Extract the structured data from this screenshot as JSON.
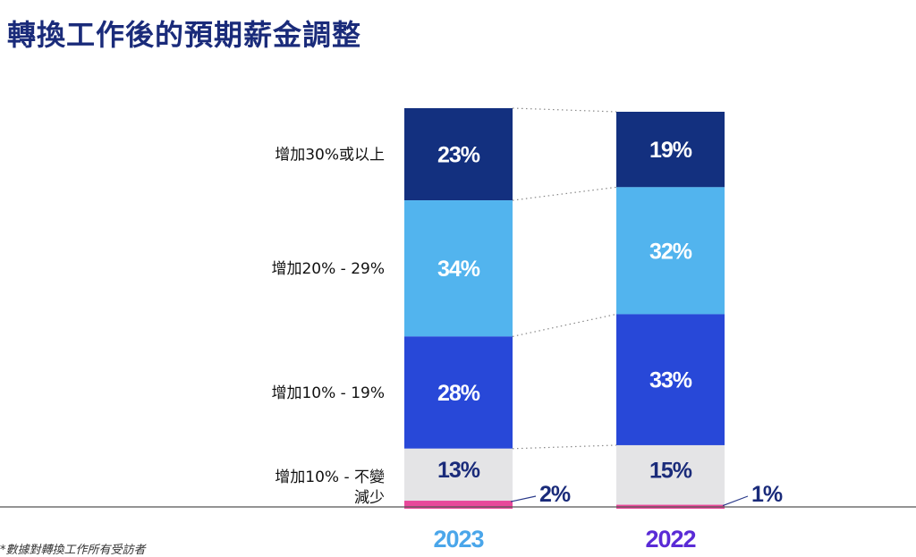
{
  "chart_data": {
    "type": "bar",
    "stacked": true,
    "normalized": true,
    "title": "轉換工作後的預期薪金調整",
    "xlabel": "",
    "ylabel": "",
    "ylim": [
      0,
      100
    ],
    "grid": false,
    "legend": "left",
    "categories": [
      "2023",
      "2022"
    ],
    "series": [
      {
        "name": "增加30%或以上",
        "color": "#13307f",
        "values": [
          23,
          19
        ],
        "labels": [
          "23%",
          "19%"
        ],
        "label_color": "#ffffff"
      },
      {
        "name": "增加20% - 29%",
        "color": "#52b4ee",
        "values": [
          34,
          32
        ],
        "labels": [
          "34%",
          "32%"
        ],
        "label_color": "#ffffff"
      },
      {
        "name": "增加10% - 19%",
        "color": "#2848d8",
        "values": [
          28,
          33
        ],
        "labels": [
          "28%",
          "33%"
        ],
        "label_color": "#ffffff"
      },
      {
        "name": "增加10% - 不變",
        "color": "#e4e4e6",
        "values": [
          13,
          15
        ],
        "labels": [
          "13%",
          "15%"
        ],
        "label_color": "#1a2b7a"
      },
      {
        "name": "減少",
        "color": "#e8489a",
        "values": [
          2,
          1
        ],
        "labels": [
          "2%",
          "1%"
        ],
        "label_color": "#1a2b7a"
      }
    ],
    "year_colors": [
      "#4aa6ea",
      "#5a2bd6"
    ]
  },
  "footnote": "*數據對轉換工作所有受訪者"
}
